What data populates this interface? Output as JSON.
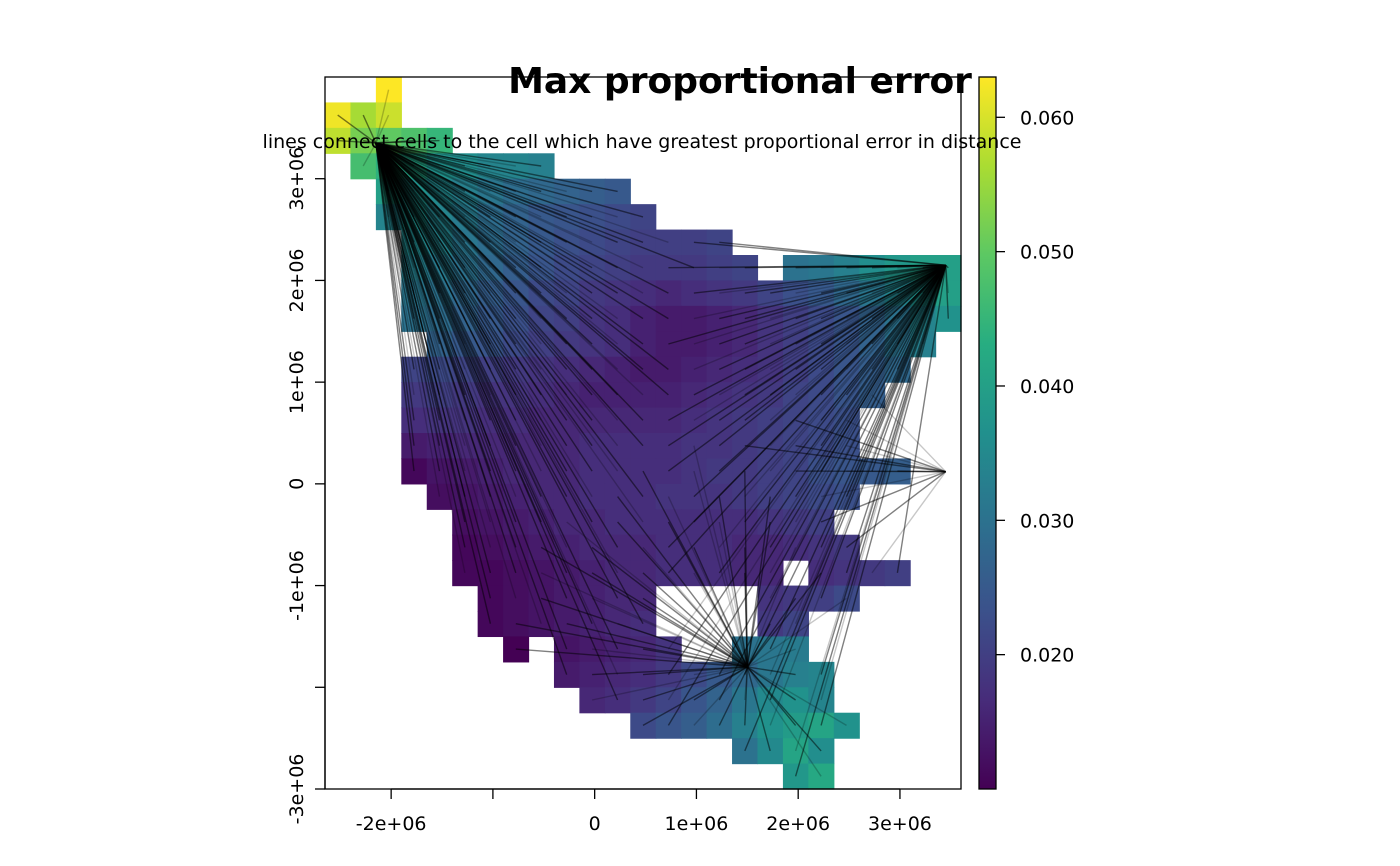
{
  "chart_data": {
    "type": "heatmap",
    "title": "Max proportional error",
    "subtitle": "lines connect cells to the cell which have greatest proportional error in distance",
    "xlabel": "",
    "ylabel": "",
    "xlim": [
      -2650000,
      3600000
    ],
    "ylim": [
      -3000000,
      4000000
    ],
    "x_ticks": [
      {
        "value": -2000000,
        "label": "-2e+06"
      },
      {
        "value": -1000000,
        "label": ""
      },
      {
        "value": 0,
        "label": "0"
      },
      {
        "value": 1000000,
        "label": "1e+06"
      },
      {
        "value": 2000000,
        "label": "2e+06"
      },
      {
        "value": 3000000,
        "label": "3e+06"
      }
    ],
    "y_ticks": [
      {
        "value": -3000000,
        "label": "-3e+06"
      },
      {
        "value": -2000000,
        "label": ""
      },
      {
        "value": -1000000,
        "label": "-1e+06"
      },
      {
        "value": 0,
        "label": "0"
      },
      {
        "value": 1000000,
        "label": "1e+06"
      },
      {
        "value": 2000000,
        "label": "2e+06"
      },
      {
        "value": 3000000,
        "label": "3e+06"
      }
    ],
    "colorbar": {
      "palette": "viridis",
      "range": [
        0.01,
        0.063
      ],
      "ticks": [
        {
          "value": 0.02,
          "label": "0.020"
        },
        {
          "value": 0.03,
          "label": "0.030"
        },
        {
          "value": 0.04,
          "label": "0.040"
        },
        {
          "value": 0.05,
          "label": "0.050"
        },
        {
          "value": 0.06,
          "label": "0.060"
        }
      ]
    },
    "cell_size": 250000,
    "grid": {
      "x_start": -2650000,
      "y_top": 4000000,
      "rows": [
        {
          "start": 2,
          "values": [
            0.063
          ]
        },
        {
          "start": 0,
          "values": [
            0.062,
            0.056,
            0.059
          ]
        },
        {
          "start": 0,
          "values": [
            0.058,
            0.052,
            0.05,
            0.048,
            0.045
          ]
        },
        {
          "start": 1,
          "values": [
            0.047,
            0.044,
            0.041,
            0.037,
            0.036,
            0.034,
            0.034,
            0.033
          ]
        },
        {
          "start": 2,
          "values": [
            0.04,
            0.037,
            0.035,
            0.033,
            0.031,
            0.029,
            0.028,
            0.027,
            0.026,
            0.025
          ]
        },
        {
          "start": 2,
          "values": [
            0.034,
            0.037,
            0.034,
            0.032,
            0.029,
            0.027,
            0.025,
            0.024,
            0.023,
            0.022,
            0.021
          ]
        },
        {
          "start": 3,
          "values": [
            0.035,
            0.034,
            0.031,
            0.029,
            0.027,
            0.025,
            0.023,
            0.022,
            0.021,
            0.02,
            0.02,
            0.02,
            0.021
          ]
        },
        {
          "start": 3,
          "values": [
            0.033,
            0.032,
            0.03,
            0.028,
            0.026,
            0.024,
            0.022,
            0.021,
            0.02,
            0.019,
            0.019,
            0.019,
            0.02,
            0.021
          ],
          "gap_after": 1,
          "tail": [
            0.03,
            0.031,
            0.033,
            0.036,
            0.038,
            0.04,
            0.04
          ]
        },
        {
          "start": 3,
          "values": [
            0.031,
            0.03,
            0.028,
            0.026,
            0.024,
            0.022,
            0.021,
            0.019,
            0.018,
            0.017,
            0.016,
            0.017,
            0.018,
            0.019,
            0.021,
            0.023,
            0.025,
            0.028,
            0.031,
            0.034,
            0.037,
            0.04,
            0.042,
            0.045
          ]
        },
        {
          "start": 3,
          "values": [
            0.03,
            0.029,
            0.027,
            0.025,
            0.023,
            0.021,
            0.02,
            0.018,
            0.017,
            0.015,
            0.014,
            0.014,
            0.015,
            0.016,
            0.018,
            0.02,
            0.022,
            0.024,
            0.027,
            0.03,
            0.034,
            0.037,
            0.04
          ]
        },
        {
          "start": 4,
          "values": [
            0.027,
            0.025,
            0.024,
            0.022,
            0.02,
            0.019,
            0.018,
            0.017,
            0.015,
            0.014,
            0.014,
            0.015,
            0.016,
            0.018,
            0.02,
            0.022,
            0.024,
            0.027,
            0.03,
            0.033
          ]
        },
        {
          "start": 3,
          "values": [
            0.021,
            0.022,
            0.021,
            0.02,
            0.019,
            0.018,
            0.017,
            0.016,
            0.015,
            0.014,
            0.014,
            0.015,
            0.016,
            0.017,
            0.018,
            0.02,
            0.022,
            0.024,
            0.026,
            0.028
          ]
        },
        {
          "start": 3,
          "values": [
            0.019,
            0.02,
            0.019,
            0.018,
            0.018,
            0.017,
            0.016,
            0.015,
            0.015,
            0.015,
            0.015,
            0.016,
            0.017,
            0.018,
            0.019,
            0.021,
            0.022,
            0.024,
            0.026
          ]
        },
        {
          "start": 3,
          "values": [
            0.017,
            0.018,
            0.018,
            0.017,
            0.017,
            0.016,
            0.016,
            0.016,
            0.016,
            0.016,
            0.016,
            0.017,
            0.018,
            0.019,
            0.02,
            0.021,
            0.022,
            0.023
          ]
        },
        {
          "start": 3,
          "values": [
            0.014,
            0.015,
            0.016,
            0.016,
            0.016,
            0.016,
            0.016,
            0.017,
            0.017,
            0.017,
            0.017,
            0.018,
            0.018,
            0.019,
            0.02,
            0.021,
            0.022,
            0.023
          ]
        },
        {
          "start": 3,
          "values": [
            0.011,
            0.013,
            0.014,
            0.015,
            0.016,
            0.016,
            0.016,
            0.017,
            0.017,
            0.017,
            0.017,
            0.018,
            0.019,
            0.019,
            0.02,
            0.021,
            0.023,
            0.024,
            0.025,
            0.026
          ],
          "gap_after": 4,
          "tail": [
            0.034
          ]
        },
        {
          "start": 4,
          "values": [
            0.012,
            0.013,
            0.014,
            0.015,
            0.016,
            0.016,
            0.017,
            0.017,
            0.017,
            0.018,
            0.018,
            0.018,
            0.019,
            0.02,
            0.021,
            0.022,
            0.023
          ]
        },
        {
          "start": 5,
          "values": [
            0.012,
            0.013,
            0.014,
            0.015,
            0.016,
            0.016,
            0.017,
            0.017,
            0.017,
            0.017,
            0.017,
            0.017,
            0.018,
            0.019,
            0.02
          ]
        },
        {
          "start": 5,
          "values": [
            0.011,
            0.012,
            0.013,
            0.014,
            0.015,
            0.016,
            0.016,
            0.016,
            0.017,
            0.017,
            0.017,
            0.016,
            0.016,
            0.017,
            0.018,
            0.019
          ]
        },
        {
          "start": 5,
          "values": [
            0.011,
            0.011,
            0.012,
            0.013,
            0.014,
            0.015,
            0.016,
            0.016,
            0.017,
            0.017,
            0.017,
            0.016,
            0.016
          ],
          "gap_after": 1,
          "tail": [
            0.017,
            0.018,
            0.019,
            0.02
          ]
        },
        {
          "start": 6,
          "values": [
            0.011,
            0.012,
            0.013,
            0.014,
            0.015,
            0.016,
            0.016
          ],
          "gap_after": 4,
          "tail": [
            0.018,
            0.019,
            0.02,
            0.022
          ]
        },
        {
          "start": 6,
          "values": [
            0.011,
            0.012,
            0.013,
            0.014,
            0.015,
            0.016,
            0.017
          ],
          "gap_after": 4,
          "tail": [
            0.019,
            0.021
          ]
        },
        {
          "start": 7,
          "values": [
            0.01
          ],
          "gap_after": 1,
          "tail": [
            0.013,
            0.014,
            0.015,
            0.016,
            0.018
          ],
          "gap2_after": 2,
          "tail2": [
            0.03,
            0.031,
            0.032
          ]
        },
        {
          "start": 9,
          "values": [
            0.014,
            0.015,
            0.016,
            0.017,
            0.019,
            0.022,
            0.025,
            0.028,
            0.031,
            0.033,
            0.034
          ]
        },
        {
          "start": 10,
          "values": [
            0.016,
            0.017,
            0.019,
            0.021,
            0.024,
            0.027,
            0.031,
            0.035,
            0.037,
            0.034
          ]
        },
        {
          "start": 12,
          "values": [
            0.022,
            0.024,
            0.026,
            0.029,
            0.033,
            0.037,
            0.039,
            0.041,
            0.037
          ]
        },
        {
          "start": 16,
          "values": [
            0.03,
            0.035,
            0.041,
            0.036
          ]
        },
        {
          "start": 18,
          "values": [
            0.038,
            0.042
          ]
        }
      ]
    },
    "line_targets": [
      {
        "x": -2150000,
        "y": 3350000
      },
      {
        "x": 3450000,
        "y": 2150000
      },
      {
        "x": 3450000,
        "y": 120000
      },
      {
        "x": 1500000,
        "y": -1800000
      }
    ]
  }
}
